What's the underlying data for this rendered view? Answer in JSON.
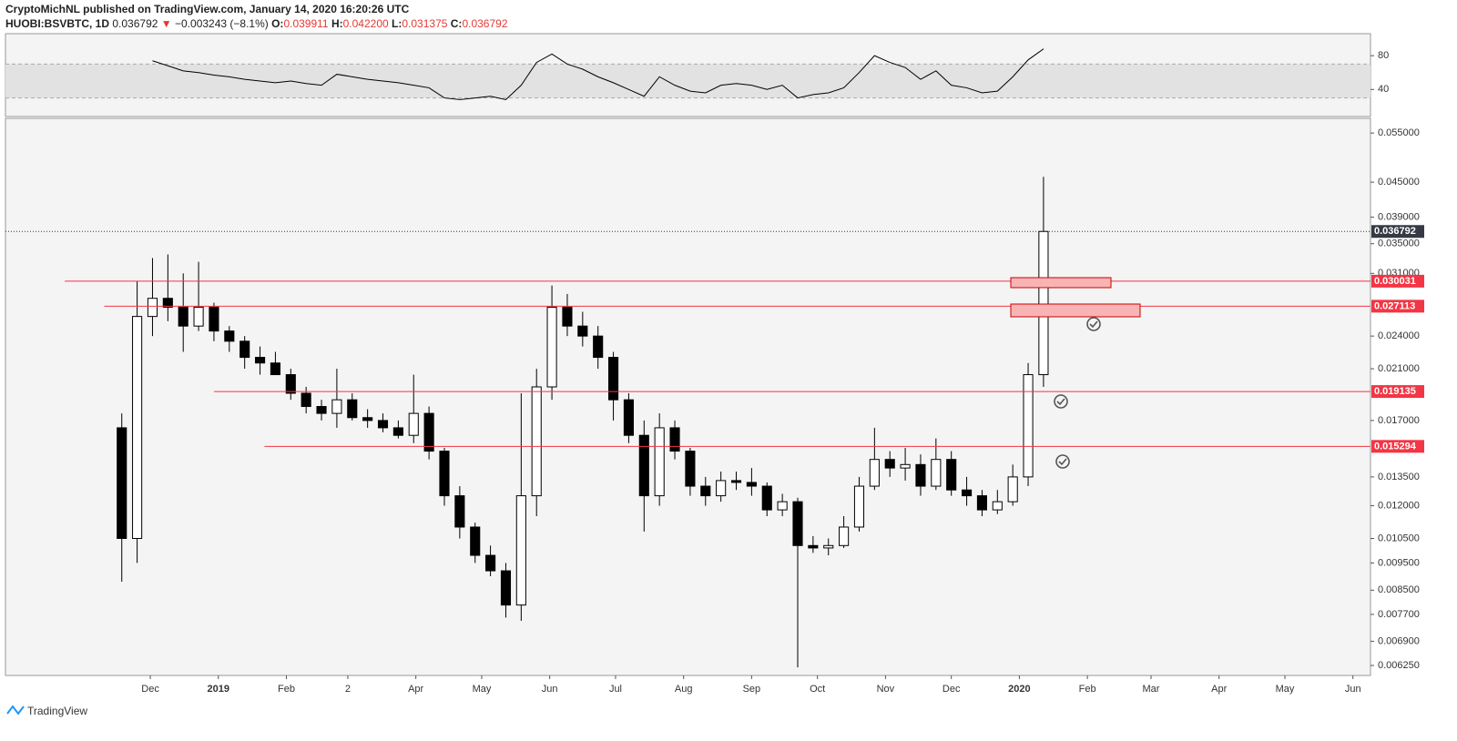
{
  "header": {
    "author_line": "CryptoMichNL published on TradingView.com, January 14, 2020 16:20:26 UTC",
    "symbol": "HUOBI:BSVBTC, 1D",
    "price": "0.036792",
    "arrow": "▼",
    "change": "−0.003243 (−8.1%)",
    "o_label": "O:",
    "o": "0.039911",
    "h_label": "H:",
    "h": "0.042200",
    "l_label": "L:",
    "l": "0.031375",
    "c_label": "C:",
    "c": "0.036792"
  },
  "footer": {
    "logo": "TradingView"
  },
  "chart_data": [
    {
      "type": "candlestick",
      "log_scale": true,
      "up_color": "#ffffff",
      "down_color": "#000000",
      "xlim": [
        -66,
        556
      ],
      "xticks": [
        {
          "value": 0,
          "label": "Dec"
        },
        {
          "value": 31,
          "label": "2019"
        },
        {
          "value": 62,
          "label": "Feb"
        },
        {
          "value": 90,
          "label": "2"
        },
        {
          "value": 121,
          "label": "Apr"
        },
        {
          "value": 151,
          "label": "May"
        },
        {
          "value": 182,
          "label": "Jun"
        },
        {
          "value": 212,
          "label": "Jul"
        },
        {
          "value": 243,
          "label": "Aug"
        },
        {
          "value": 274,
          "label": "Sep"
        },
        {
          "value": 304,
          "label": "Oct"
        },
        {
          "value": 335,
          "label": "Nov"
        },
        {
          "value": 365,
          "label": "Dec"
        },
        {
          "value": 396,
          "label": "2020"
        },
        {
          "value": 427,
          "label": "Feb"
        },
        {
          "value": 456,
          "label": "Mar"
        },
        {
          "value": 487,
          "label": "Apr"
        },
        {
          "value": 517,
          "label": "May"
        },
        {
          "value": 548,
          "label": "Jun"
        }
      ],
      "ylim": [
        0.006,
        0.0584
      ],
      "yticks": [
        {
          "value": 0.055,
          "label": "0.055000"
        },
        {
          "value": 0.045,
          "label": "0.045000"
        },
        {
          "value": 0.039,
          "label": "0.039000"
        },
        {
          "value": 0.035,
          "label": "0.035000"
        },
        {
          "value": 0.031,
          "label": "0.031000"
        },
        {
          "value": 0.024,
          "label": "0.024000"
        },
        {
          "value": 0.021,
          "label": "0.021000"
        },
        {
          "value": 0.017,
          "label": "0.017000"
        },
        {
          "value": 0.0135,
          "label": "0.013500"
        },
        {
          "value": 0.012,
          "label": "0.012000"
        },
        {
          "value": 0.0105,
          "label": "0.010500"
        },
        {
          "value": 0.0095,
          "label": "0.009500"
        },
        {
          "value": 0.0085,
          "label": "0.008500"
        },
        {
          "value": 0.0077,
          "label": "0.007700"
        },
        {
          "value": 0.0069,
          "label": "0.006900"
        },
        {
          "value": 0.00625,
          "label": "0.006250"
        }
      ],
      "last": 0.036792,
      "levels": [
        {
          "value": 0.030031,
          "from": -39
        },
        {
          "value": 0.027113,
          "from": -21
        },
        {
          "value": 0.019135,
          "from": 29
        },
        {
          "value": 0.015294,
          "from": 52
        }
      ],
      "level_color": "#f23645",
      "x": [
        -13,
        -6,
        1,
        8,
        15,
        22,
        29,
        36,
        43,
        50,
        57,
        64,
        71,
        78,
        85,
        92,
        99,
        106,
        113,
        120,
        127,
        134,
        141,
        148,
        155,
        162,
        169,
        176,
        183,
        190,
        197,
        204,
        211,
        218,
        225,
        232,
        239,
        246,
        253,
        260,
        267,
        274,
        281,
        288,
        295,
        302,
        309,
        316,
        323,
        330,
        337,
        344,
        351,
        358,
        365,
        372,
        379,
        386,
        393,
        400,
        407
      ],
      "open": [
        0.0165,
        0.0105,
        0.026,
        0.028,
        0.027,
        0.025,
        0.027,
        0.0245,
        0.0235,
        0.022,
        0.0215,
        0.0205,
        0.019,
        0.018,
        0.0175,
        0.0185,
        0.0172,
        0.017,
        0.0165,
        0.016,
        0.0175,
        0.015,
        0.0125,
        0.011,
        0.0098,
        0.0092,
        0.008,
        0.0125,
        0.0195,
        0.027,
        0.025,
        0.024,
        0.022,
        0.0185,
        0.016,
        0.0125,
        0.0165,
        0.015,
        0.013,
        0.0125,
        0.0133,
        0.0132,
        0.013,
        0.0118,
        0.0122,
        0.0102,
        0.0101,
        0.0102,
        0.011,
        0.013,
        0.0145,
        0.014,
        0.0142,
        0.013,
        0.0145,
        0.0128,
        0.0125,
        0.0118,
        0.0122,
        0.0135,
        0.0205
      ],
      "high": [
        0.0175,
        0.03,
        0.033,
        0.0335,
        0.031,
        0.0325,
        0.0275,
        0.025,
        0.024,
        0.023,
        0.0225,
        0.021,
        0.0195,
        0.0185,
        0.021,
        0.019,
        0.0178,
        0.0175,
        0.017,
        0.0205,
        0.018,
        0.0152,
        0.013,
        0.0112,
        0.0102,
        0.0095,
        0.019,
        0.021,
        0.0295,
        0.0285,
        0.0265,
        0.025,
        0.0225,
        0.019,
        0.017,
        0.0175,
        0.017,
        0.0152,
        0.0135,
        0.0138,
        0.0138,
        0.014,
        0.0132,
        0.0126,
        0.0124,
        0.0106,
        0.0105,
        0.0115,
        0.0135,
        0.0165,
        0.015,
        0.0152,
        0.0148,
        0.0158,
        0.015,
        0.0135,
        0.0128,
        0.0128,
        0.0142,
        0.0215,
        0.046
      ],
      "low": [
        0.0088,
        0.0095,
        0.024,
        0.0255,
        0.0225,
        0.0245,
        0.0235,
        0.0225,
        0.021,
        0.0205,
        0.0205,
        0.0185,
        0.0175,
        0.017,
        0.0165,
        0.017,
        0.0165,
        0.0162,
        0.0158,
        0.0155,
        0.0145,
        0.012,
        0.0105,
        0.0095,
        0.009,
        0.0076,
        0.0075,
        0.0115,
        0.0185,
        0.024,
        0.023,
        0.021,
        0.017,
        0.0155,
        0.0108,
        0.012,
        0.0145,
        0.0125,
        0.012,
        0.0122,
        0.0128,
        0.0125,
        0.0115,
        0.0115,
        0.0062,
        0.0099,
        0.0098,
        0.0101,
        0.0108,
        0.0128,
        0.0135,
        0.0133,
        0.0125,
        0.0128,
        0.0125,
        0.012,
        0.0115,
        0.0116,
        0.012,
        0.013,
        0.0195
      ],
      "close": [
        0.0105,
        0.026,
        0.028,
        0.027,
        0.025,
        0.027,
        0.0245,
        0.0235,
        0.022,
        0.0215,
        0.0205,
        0.019,
        0.018,
        0.0175,
        0.0185,
        0.0172,
        0.017,
        0.0165,
        0.016,
        0.0175,
        0.015,
        0.0125,
        0.011,
        0.0098,
        0.0092,
        0.008,
        0.0125,
        0.0195,
        0.027,
        0.025,
        0.024,
        0.022,
        0.0185,
        0.016,
        0.0125,
        0.0165,
        0.015,
        0.013,
        0.0125,
        0.0133,
        0.0132,
        0.013,
        0.0118,
        0.0122,
        0.0102,
        0.0101,
        0.0102,
        0.011,
        0.013,
        0.0145,
        0.014,
        0.0142,
        0.013,
        0.0145,
        0.0128,
        0.0125,
        0.0118,
        0.0122,
        0.0135,
        0.0205,
        0.036792
      ]
    },
    {
      "type": "line",
      "color": "#000000",
      "ylim": [
        8,
        106
      ],
      "yticks": [
        80,
        40
      ],
      "bands": [
        30,
        70
      ],
      "x": [
        -13,
        -6,
        1,
        8,
        15,
        22,
        29,
        36,
        43,
        50,
        57,
        64,
        71,
        78,
        85,
        92,
        99,
        106,
        113,
        120,
        127,
        134,
        141,
        148,
        155,
        162,
        169,
        176,
        183,
        190,
        197,
        204,
        211,
        218,
        225,
        232,
        239,
        246,
        253,
        260,
        267,
        274,
        281,
        288,
        295,
        302,
        309,
        316,
        323,
        330,
        337,
        344,
        351,
        358,
        365,
        372,
        379,
        386,
        393,
        400,
        407
      ],
      "values": [
        null,
        null,
        74,
        68,
        62,
        60,
        57,
        55,
        52,
        50,
        48,
        50,
        47,
        45,
        58,
        55,
        52,
        50,
        48,
        45,
        42,
        30,
        28,
        30,
        32,
        28,
        45,
        72,
        82,
        70,
        64,
        55,
        48,
        40,
        32,
        55,
        45,
        38,
        36,
        45,
        47,
        45,
        40,
        45,
        30,
        34,
        36,
        42,
        60,
        80,
        72,
        66,
        52,
        62,
        45,
        42,
        36,
        38,
        55,
        75,
        88
      ]
    }
  ]
}
